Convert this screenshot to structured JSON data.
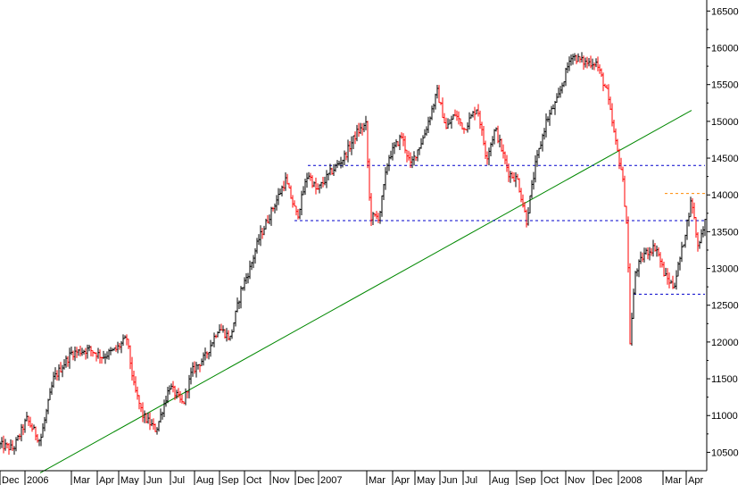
{
  "chart_data": {
    "type": "ohlc",
    "title": "",
    "xlabel": "",
    "ylabel": "",
    "y_axis_side": "right",
    "ylim": [
      10250,
      16650
    ],
    "grid": false,
    "legend": "none",
    "x_tick_labels": [
      "Dec",
      "2006",
      "Mar",
      "Apr",
      "May",
      "Jun",
      "Jul",
      "Aug",
      "Sep",
      "Oct",
      "Nov",
      "Dec",
      "2007",
      "Mar",
      "Apr",
      "May",
      "Jun",
      "Jul",
      "Aug",
      "Sep",
      "Oct",
      "Nov",
      "Dec",
      "2008",
      "Mar",
      "Apr"
    ],
    "y_ticks": [
      10500,
      11000,
      11500,
      12000,
      12500,
      13000,
      13500,
      14000,
      14500,
      15000,
      15500,
      16000,
      16500
    ],
    "series": [
      {
        "values": [
          [
            0,
            10600
          ],
          [
            15,
            10550
          ],
          [
            30,
            10950
          ],
          [
            45,
            10650
          ],
          [
            60,
            11500
          ],
          [
            80,
            11850
          ],
          [
            100,
            11900
          ],
          [
            115,
            11800
          ],
          [
            130,
            11900
          ],
          [
            142,
            12050
          ],
          [
            150,
            11400
          ],
          [
            160,
            11000
          ],
          [
            175,
            10800
          ],
          [
            190,
            11400
          ],
          [
            205,
            11150
          ],
          [
            215,
            11600
          ],
          [
            230,
            11800
          ],
          [
            245,
            12200
          ],
          [
            258,
            12050
          ],
          [
            270,
            12700
          ],
          [
            280,
            13000
          ],
          [
            290,
            13400
          ],
          [
            305,
            13800
          ],
          [
            320,
            14200
          ],
          [
            333,
            13700
          ],
          [
            345,
            14300
          ],
          [
            355,
            14050
          ],
          [
            370,
            14300
          ],
          [
            385,
            14500
          ],
          [
            400,
            14850
          ],
          [
            410,
            14950
          ],
          [
            415,
            13700
          ],
          [
            425,
            13700
          ],
          [
            435,
            14500
          ],
          [
            450,
            14800
          ],
          [
            460,
            14400
          ],
          [
            475,
            14800
          ],
          [
            490,
            15400
          ],
          [
            500,
            14900
          ],
          [
            510,
            15100
          ],
          [
            520,
            14900
          ],
          [
            535,
            15200
          ],
          [
            545,
            14500
          ],
          [
            555,
            14900
          ],
          [
            570,
            14300
          ],
          [
            580,
            14200
          ],
          [
            590,
            13650
          ],
          [
            600,
            14400
          ],
          [
            612,
            15000
          ],
          [
            625,
            15300
          ],
          [
            640,
            15900
          ],
          [
            655,
            15800
          ],
          [
            668,
            15800
          ],
          [
            680,
            15400
          ],
          [
            690,
            14700
          ],
          [
            697,
            14300
          ],
          [
            703,
            13500
          ],
          [
            706,
            12000
          ],
          [
            712,
            12950
          ],
          [
            722,
            13200
          ],
          [
            735,
            13300
          ],
          [
            745,
            12900
          ],
          [
            755,
            12750
          ],
          [
            765,
            13300
          ],
          [
            775,
            13950
          ],
          [
            782,
            13300
          ],
          [
            790,
            13650
          ]
        ]
      }
    ],
    "annotations": {
      "horizontal_lines": [
        {
          "value": 14400,
          "color": "#0000cc",
          "style": "dashed",
          "x_from": 345,
          "x_to": 790
        },
        {
          "value": 13650,
          "color": "#0000cc",
          "style": "dashed",
          "x_from": 330,
          "x_to": 790
        },
        {
          "value": 12650,
          "color": "#0000cc",
          "style": "dashed",
          "x_from": 710,
          "x_to": 790
        },
        {
          "value": 14020,
          "color": "#ff8800",
          "style": "dashed",
          "x_from": 745,
          "x_to": 790
        }
      ],
      "trend_line": {
        "color": "#008800",
        "from": [
          45,
          10220
        ],
        "to": [
          775,
          15150
        ]
      }
    },
    "colors": {
      "up": "#000000",
      "down": "#ff0000",
      "axis": "#000000",
      "background": "#ffffff"
    }
  }
}
